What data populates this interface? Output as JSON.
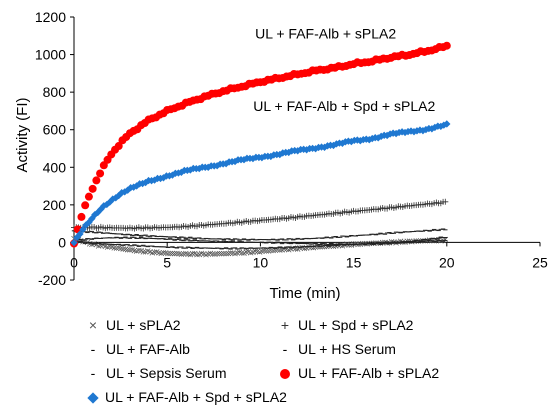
{
  "chart_data": {
    "type": "scatter",
    "xlabel": "Time (min)",
    "ylabel": "Activity (FI)",
    "xlim": [
      0,
      25
    ],
    "ylim": [
      -200,
      1200
    ],
    "xticks": [
      0,
      5,
      10,
      15,
      20,
      25
    ],
    "yticks": [
      -200,
      0,
      200,
      400,
      600,
      800,
      1000,
      1200
    ],
    "grid": false,
    "legend_position": "bottom",
    "annotations": [
      {
        "text": "UL + FAF-Alb + sPLA2",
        "x": 13.5,
        "y": 1085
      },
      {
        "text": "UL + FAF-Alb + Spd + sPLA2",
        "x": 14.5,
        "y": 700
      }
    ],
    "series": [
      {
        "name": "UL + sPLA2",
        "marker": "x",
        "color": "#555555",
        "x": [
          0,
          1,
          2,
          3,
          4,
          5,
          6,
          7,
          8,
          9,
          10,
          11,
          12,
          13,
          14,
          15,
          16,
          17,
          18,
          19,
          20
        ],
        "y": [
          20,
          -10,
          -25,
          -40,
          -50,
          -58,
          -62,
          -62,
          -60,
          -55,
          -48,
          -40,
          -32,
          -25,
          -18,
          -10,
          -5,
          0,
          5,
          10,
          12
        ]
      },
      {
        "name": "UL + Spd + sPLA2",
        "marker": "plus",
        "color": "#333333",
        "x": [
          0,
          1,
          2,
          3,
          4,
          5,
          6,
          7,
          8,
          9,
          10,
          11,
          12,
          13,
          14,
          15,
          16,
          17,
          18,
          19,
          20
        ],
        "y": [
          80,
          80,
          78,
          76,
          78,
          80,
          85,
          92,
          100,
          108,
          117,
          126,
          135,
          145,
          155,
          165,
          175,
          185,
          195,
          205,
          215
        ]
      },
      {
        "name": "UL + FAF-Alb",
        "marker": "dash",
        "color": "#222222",
        "x": [
          0,
          1,
          2,
          3,
          4,
          5,
          6,
          7,
          8,
          9,
          10,
          11,
          12,
          13,
          14,
          15,
          16,
          17,
          18,
          19,
          20
        ],
        "y": [
          60,
          55,
          48,
          40,
          35,
          30,
          25,
          20,
          18,
          15,
          15,
          15,
          18,
          22,
          28,
          35,
          42,
          50,
          57,
          63,
          70
        ]
      },
      {
        "name": "UL + HS Serum",
        "marker": "dash",
        "color": "#222222",
        "x": [
          0,
          1,
          2,
          3,
          4,
          5,
          6,
          7,
          8,
          9,
          10,
          11,
          12,
          13,
          14,
          15,
          16,
          17,
          18,
          19,
          20
        ],
        "y": [
          5,
          -5,
          -10,
          -15,
          -20,
          -25,
          -28,
          -30,
          -32,
          -32,
          -30,
          -28,
          -25,
          -20,
          -15,
          -10,
          -5,
          0,
          5,
          15,
          30
        ]
      },
      {
        "name": "UL + Sepsis Serum",
        "marker": "dash",
        "color": "#222222",
        "x": [
          0,
          1,
          2,
          3,
          4,
          5,
          6,
          7,
          8,
          9,
          10,
          11,
          12,
          13,
          14,
          15,
          16,
          17,
          18,
          19,
          20
        ],
        "y": [
          10,
          20,
          25,
          25,
          22,
          18,
          12,
          8,
          5,
          2,
          0,
          -2,
          -5,
          -8,
          -10,
          -10,
          -8,
          -5,
          0,
          5,
          10
        ]
      },
      {
        "name": "UL + FAF-Alb + sPLA2",
        "marker": "circle",
        "color": "#ff0000",
        "x": [
          0,
          0.5,
          1,
          1.5,
          2,
          2.5,
          3,
          4,
          5,
          6,
          7,
          8,
          9,
          10,
          11,
          12,
          13,
          14,
          15,
          16,
          17,
          18,
          19,
          20
        ],
        "y": [
          0,
          170,
          290,
          390,
          470,
          530,
          580,
          650,
          700,
          740,
          775,
          805,
          830,
          855,
          875,
          895,
          915,
          930,
          950,
          965,
          985,
          1000,
          1020,
          1045
        ]
      },
      {
        "name": "UL + FAF-Alb + Spd + sPLA2",
        "marker": "diamond",
        "color": "#1f78d1",
        "x": [
          0,
          0.5,
          1,
          1.5,
          2,
          2.5,
          3,
          4,
          5,
          6,
          7,
          8,
          9,
          10,
          11,
          12,
          13,
          14,
          15,
          16,
          17,
          18,
          19,
          20
        ],
        "y": [
          0,
          70,
          130,
          185,
          225,
          260,
          285,
          325,
          355,
          380,
          400,
          420,
          438,
          455,
          470,
          488,
          505,
          520,
          540,
          555,
          575,
          590,
          605,
          625
        ]
      }
    ]
  }
}
